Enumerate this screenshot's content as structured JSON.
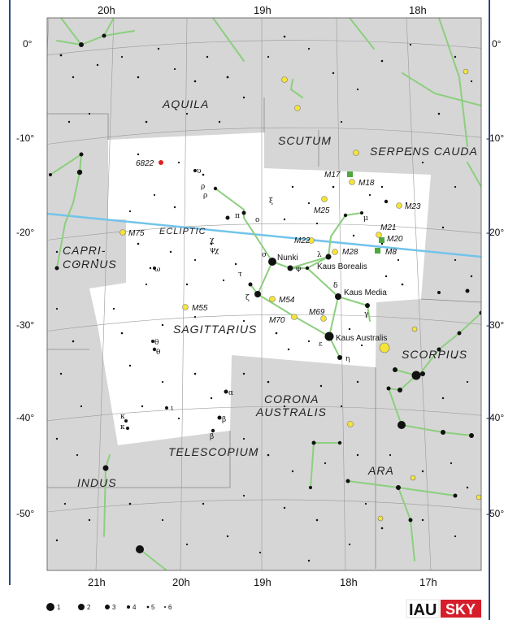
{
  "ra_labels_top": [
    "20h",
    "19h",
    "18h"
  ],
  "ra_labels_bottom": [
    "21h",
    "20h",
    "19h",
    "18h",
    "17h"
  ],
  "dec_labels": [
    "0°",
    "-10°",
    "-20°",
    "-30°",
    "-40°",
    "-50°"
  ],
  "constellations": {
    "aquila": "AQUILA",
    "scutum": "SCUTUM",
    "serpens": "SERPENS CAUDA",
    "capri1": "CAPRI-",
    "capri2": "CORNUS",
    "sagittarius": "SAGITTARIUS",
    "corona1": "CORONA",
    "corona2": "AUSTRALIS",
    "telescopium": "TELESCOPIUM",
    "indus": "INDUS",
    "ara": "ARA",
    "scorpius": "SCORPIUS"
  },
  "ecliptic_label": "ECLIPTIC",
  "named_stars": {
    "nunki": "Nunki",
    "kaus_borealis": "Kaus Borealis",
    "kaus_media": "Kaus Media",
    "kaus_australis": "Kaus Australis"
  },
  "messier": {
    "m17": "M17",
    "m18": "M18",
    "m23": "M23",
    "m25": "M25",
    "m21": "M21",
    "m20": "M20",
    "m22": "M22",
    "m28": "M28",
    "m8": "M8",
    "m75": "M75",
    "m54": "M54",
    "m55": "M55",
    "m70": "M70",
    "m69": "M69",
    "ngc6822": "6822"
  },
  "bayer": {
    "sigma": "σ",
    "tau": "τ",
    "zeta": "ζ",
    "phi": "φ",
    "lambda": "λ",
    "delta": "δ",
    "gamma": "γ",
    "epsilon": "ε",
    "eta": "η",
    "mu": "μ",
    "pi": "π",
    "omicron": "ο",
    "xi": "ξ",
    "psi": "ψ",
    "omega": "ω",
    "upsilon": "υ",
    "rho1": "ρ",
    "rho2": "ρ",
    "chi1": "χ",
    "chi3": "χ",
    "theta1": "θ",
    "theta2": "θ",
    "kappa1": "κ",
    "kappa2": "κ",
    "iota": "ι",
    "alpha": "α",
    "beta1": "β",
    "beta2": "β"
  },
  "legend": [
    "1",
    "2",
    "3",
    "4",
    "5",
    "6"
  ],
  "logo": {
    "iau": "IAU",
    "sky": "SKY"
  },
  "colors": {
    "outside": "#d6d6d6",
    "inside": "#ffffff",
    "lines": "#8ccf7e",
    "ecliptic": "#72c4ea",
    "messier_yellow": "#f5e33a",
    "messier_green": "#4fa83d",
    "galaxy_red": "#e02020",
    "frame": "#2a4a7a"
  }
}
